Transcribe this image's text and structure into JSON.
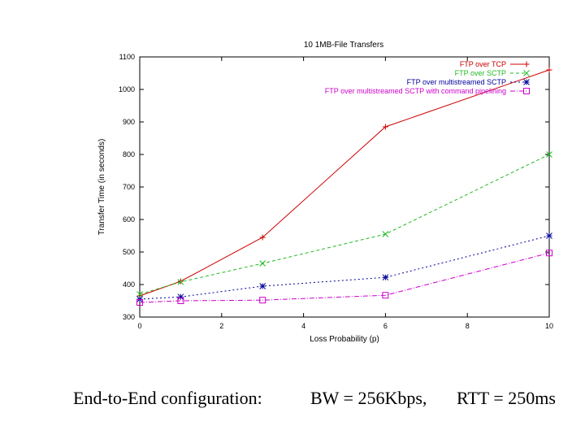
{
  "chart_data": {
    "type": "line",
    "title": "10  1MB-File  Transfers",
    "xlabel": "Loss Probability (p)",
    "ylabel": "Transfer Time (in seconds)",
    "xlim": [
      0,
      10
    ],
    "ylim": [
      300,
      1100
    ],
    "xticks": [
      0,
      2,
      4,
      6,
      8,
      10
    ],
    "yticks": [
      300,
      400,
      500,
      600,
      700,
      800,
      900,
      1000,
      1100
    ],
    "grid": false,
    "legend_position": "top-right",
    "series": [
      {
        "name": "FTP over TCP",
        "color": "#cc0000",
        "marker": "plus",
        "dash": "",
        "x": [
          0,
          1,
          3,
          6,
          10
        ],
        "values": [
          365,
          410,
          545,
          885,
          1060
        ]
      },
      {
        "name": "FTP over SCTP",
        "color": "#22bb22",
        "marker": "x",
        "dash": "4,3",
        "x": [
          0,
          1,
          3,
          6,
          10
        ],
        "values": [
          370,
          408,
          465,
          555,
          800
        ]
      },
      {
        "name": "FTP over multistreamed SCTP",
        "color": "#000099",
        "marker": "star",
        "dash": "2,3",
        "x": [
          0,
          1,
          3,
          6,
          10
        ],
        "values": [
          355,
          362,
          395,
          422,
          550
        ]
      },
      {
        "name": "FTP over multistreamed SCTP with command pipelining",
        "color": "#cc00cc",
        "marker": "square",
        "dash": "6,2,1,2",
        "x": [
          0,
          1,
          3,
          6,
          10
        ],
        "values": [
          345,
          350,
          352,
          367,
          497
        ]
      }
    ]
  },
  "caption": {
    "config": "End-to-End configuration:",
    "bw": "BW = 256Kbps,",
    "rtt": "RTT = 250ms"
  }
}
